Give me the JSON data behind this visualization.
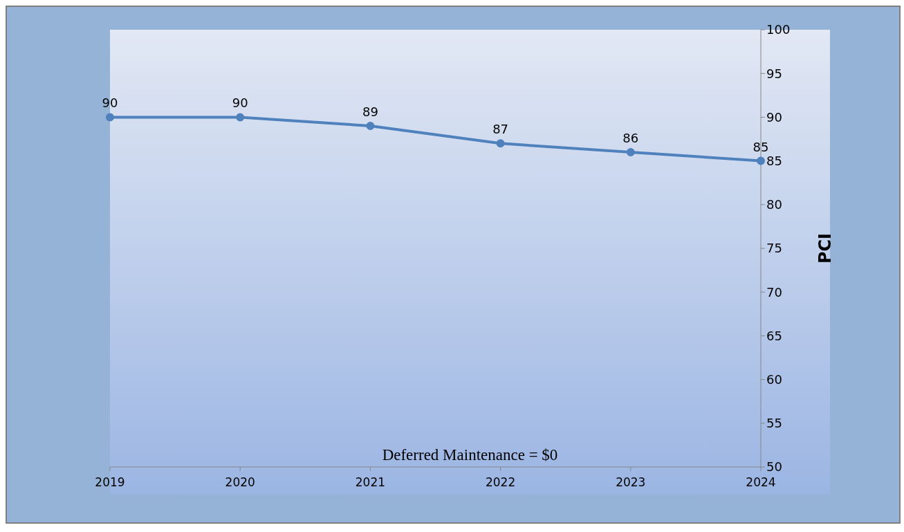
{
  "chart_data": {
    "type": "line",
    "categories": [
      "2019",
      "2020",
      "2021",
      "2022",
      "2023",
      "2024"
    ],
    "series": [
      {
        "color": "#4f81bd",
        "values": [
          90,
          90,
          89,
          87,
          86,
          85
        ]
      }
    ],
    "ylabel": "PCI",
    "ylim": [
      50,
      100
    ],
    "yticks": [
      50,
      55,
      60,
      65,
      70,
      75,
      80,
      85,
      90,
      95,
      100
    ],
    "data_labels": true,
    "marker": "circle",
    "grid": false,
    "legend": false,
    "annotations": [
      "Deferred Maintenance = $0"
    ]
  }
}
